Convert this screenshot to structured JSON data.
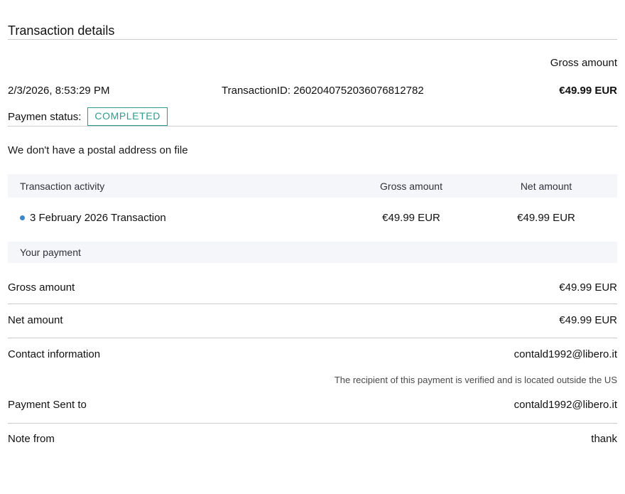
{
  "page": {
    "title": "Transaction details"
  },
  "summary": {
    "gross_amount_label": "Gross amount",
    "datetime": "2/3/2026, 8:53:29 PM",
    "transaction_id": "TransactionID: 2602040752036076812782",
    "gross_amount_value": "€49.99 EUR",
    "payment_status_label": "Paymen status:",
    "payment_status_value": "COMPLETED"
  },
  "postal_notice": "We don't have a postal address on file",
  "activity_table": {
    "headers": {
      "activity": "Transaction activity",
      "gross": "Gross amount",
      "net": "Net amount"
    },
    "row": {
      "label": "3 February 2026 Transaction",
      "gross": "€49.99 EUR",
      "net": "€49.99 EUR"
    },
    "section_header": "Your payment"
  },
  "details": {
    "gross": {
      "label": "Gross amount",
      "value": "€49.99 EUR"
    },
    "net": {
      "label": "Net amount",
      "value": "€49.99 EUR"
    },
    "contact": {
      "label": "Contact information",
      "value": "contald1992@libero.it"
    },
    "recipient_note": "The recipient of this payment is verified and is located outside the US",
    "sent_to": {
      "label": "Payment Sent to",
      "value": "contald1992@libero.it"
    },
    "note_from": {
      "label": "Note from",
      "value": "thank"
    }
  },
  "colors": {
    "status_badge": "#2a9e8b",
    "activity_bullet": "#3d87c9",
    "section_header_bg": "#f4f6f9",
    "divider": "#cccccc"
  }
}
